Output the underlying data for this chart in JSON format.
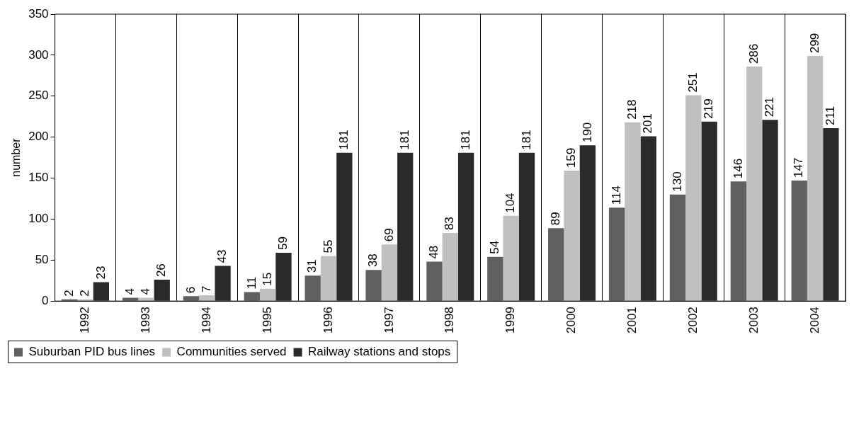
{
  "chart_data": {
    "type": "bar",
    "ylabel": "number",
    "categories": [
      "1992",
      "1993",
      "1994",
      "1995",
      "1996",
      "1997",
      "1998",
      "1999",
      "2000",
      "2001",
      "2002",
      "2003",
      "2004"
    ],
    "series": [
      {
        "name": "Suburban PID bus lines",
        "color": "#606060",
        "values": [
          2,
          4,
          6,
          11,
          31,
          38,
          48,
          54,
          89,
          114,
          130,
          146,
          147
        ]
      },
      {
        "name": "Communities served",
        "color": "#c0c0c0",
        "values": [
          2,
          4,
          7,
          15,
          55,
          69,
          83,
          104,
          159,
          218,
          251,
          286,
          299
        ]
      },
      {
        "name": "Railway stations and stops",
        "color": "#2a2a2a",
        "values": [
          23,
          26,
          43,
          59,
          181,
          181,
          181,
          181,
          190,
          201,
          219,
          221,
          211
        ]
      }
    ],
    "ylim": [
      0,
      350
    ],
    "yticks": [
      0,
      50,
      100,
      150,
      200,
      250,
      300,
      350
    ],
    "grid": "x",
    "legend": "bottom",
    "data_labels": true
  }
}
